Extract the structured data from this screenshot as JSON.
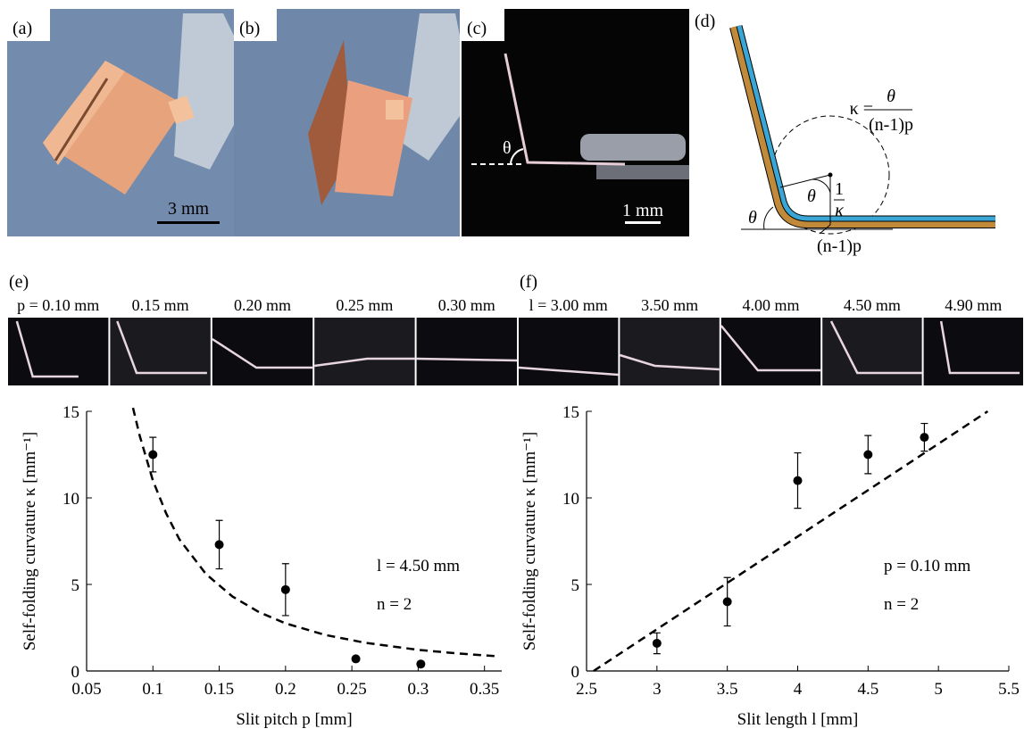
{
  "panels": {
    "a": {
      "label": "(a)",
      "scale": "3 mm"
    },
    "b": {
      "label": "(b)"
    },
    "c": {
      "label": "(c)",
      "angle": "θ",
      "scale": "1 mm"
    },
    "d": {
      "label": "(d)",
      "kappa_eq": "κ =",
      "numerator": "θ",
      "denominator": "(n-1)p",
      "inner_angle": "θ",
      "one": "1",
      "kappa": "κ",
      "outer_angle": "θ",
      "arc_length": "(n-1)p"
    }
  },
  "strips": [
    {
      "label": "(e)",
      "captions": [
        "p = 0.10 mm",
        "0.15 mm",
        "0.20 mm",
        "0.25 mm",
        "0.30 mm"
      ]
    },
    {
      "label": "(f)",
      "captions": [
        "l = 3.00 mm",
        "3.50 mm",
        "4.00 mm",
        "4.50 mm",
        "4.90 mm"
      ]
    }
  ],
  "chart_data": [
    {
      "type": "scatter",
      "x_label": "Slit pitch p [mm]",
      "y_label": "Self-folding curvature κ [mm⁻¹]",
      "annotations": [
        "l = 4.50 mm",
        "n = 2"
      ],
      "xlim": [
        0.05,
        0.363
      ],
      "ylim": [
        0,
        15
      ],
      "xticks": [
        0.05,
        0.1,
        0.15,
        0.2,
        0.25,
        0.3,
        0.35
      ],
      "yticks": [
        0,
        5,
        10,
        15
      ],
      "series": [
        {
          "mode": "markers",
          "color": "#000000",
          "x": [
            0.1,
            0.15,
            0.2,
            0.253,
            0.302
          ],
          "values": [
            12.5,
            7.3,
            4.7,
            0.7,
            0.4
          ],
          "errors": [
            1.0,
            1.4,
            1.5,
            0.1,
            0.15
          ]
        },
        {
          "mode": "dashed-line",
          "color": "#000000",
          "x": [
            0.085,
            0.09,
            0.1,
            0.11,
            0.12,
            0.14,
            0.16,
            0.18,
            0.2,
            0.23,
            0.26,
            0.3,
            0.33,
            0.36
          ],
          "values": [
            15.2,
            13.6,
            11.0,
            9.1,
            7.6,
            5.6,
            4.3,
            3.4,
            2.75,
            2.08,
            1.63,
            1.22,
            1.01,
            0.85
          ]
        }
      ]
    },
    {
      "type": "scatter",
      "x_label": "Slit length l [mm]",
      "y_label": "Self-folding curvature κ [mm⁻¹]",
      "annotations": [
        "p = 0.10 mm",
        "n = 2"
      ],
      "xlim": [
        2.5,
        5.5
      ],
      "ylim": [
        0,
        15
      ],
      "xticks": [
        2.5,
        3,
        3.5,
        4,
        4.5,
        5,
        5.5
      ],
      "yticks": [
        0,
        5,
        10,
        15
      ],
      "series": [
        {
          "mode": "markers",
          "color": "#000000",
          "x": [
            3,
            3.5,
            4,
            4.5,
            4.9
          ],
          "values": [
            1.6,
            4.0,
            11.0,
            12.5,
            13.5
          ],
          "errors": [
            0.6,
            1.4,
            1.6,
            1.1,
            0.8
          ]
        },
        {
          "mode": "dashed-line",
          "color": "#000000",
          "x": [
            2.55,
            5.35
          ],
          "values": [
            0,
            15
          ]
        }
      ]
    }
  ]
}
